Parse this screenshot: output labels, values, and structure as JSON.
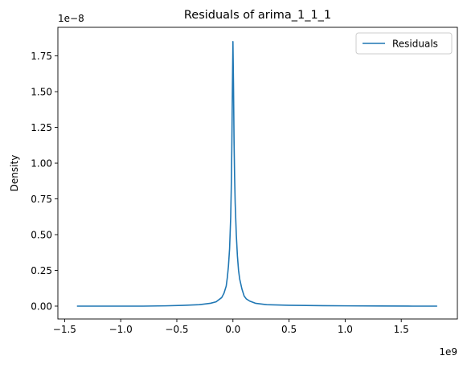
{
  "chart_data": {
    "type": "line",
    "title": "Residuals of arima_1_1_1",
    "xlabel": "",
    "ylabel": "Density",
    "x_offset_label": "1e9",
    "y_offset_label": "1e−8",
    "xlim": [
      -1.56,
      2.0
    ],
    "ylim": [
      -0.09,
      1.95
    ],
    "x_ticks": [
      -1.5,
      -1.0,
      -0.5,
      0.0,
      0.5,
      1.0,
      1.5
    ],
    "x_tick_labels": [
      "−1.5",
      "−1.0",
      "−0.5",
      "0.0",
      "0.5",
      "1.0",
      "1.5"
    ],
    "y_ticks": [
      0.0,
      0.25,
      0.5,
      0.75,
      1.0,
      1.25,
      1.5,
      1.75
    ],
    "y_tick_labels": [
      "0.00",
      "0.25",
      "0.50",
      "0.75",
      "1.00",
      "1.25",
      "1.50",
      "1.75"
    ],
    "grid": false,
    "legend_position": "top-right",
    "colors": {
      "series": "#1f77b4",
      "axes": "#000000",
      "legend_border": "#cccccc"
    },
    "series": [
      {
        "name": "Residuals",
        "x": [
          -1.39,
          -1.2,
          -1.0,
          -0.8,
          -0.6,
          -0.45,
          -0.3,
          -0.2,
          -0.15,
          -0.1,
          -0.08,
          -0.06,
          -0.05,
          -0.04,
          -0.03,
          -0.02,
          -0.015,
          -0.01,
          -0.005,
          0.0,
          0.005,
          0.01,
          0.015,
          0.02,
          0.03,
          0.04,
          0.05,
          0.06,
          0.08,
          0.1,
          0.12,
          0.15,
          0.2,
          0.3,
          0.5,
          0.8,
          1.0,
          1.3,
          1.6,
          1.82
        ],
        "y": [
          0.0,
          0.0,
          0.0,
          0.0,
          0.002,
          0.005,
          0.01,
          0.02,
          0.03,
          0.06,
          0.09,
          0.14,
          0.2,
          0.28,
          0.4,
          0.62,
          0.82,
          1.1,
          1.5,
          1.85,
          1.55,
          1.15,
          0.9,
          0.72,
          0.5,
          0.35,
          0.25,
          0.19,
          0.12,
          0.07,
          0.05,
          0.035,
          0.02,
          0.01,
          0.006,
          0.003,
          0.002,
          0.001,
          0.0,
          0.0
        ]
      }
    ]
  }
}
